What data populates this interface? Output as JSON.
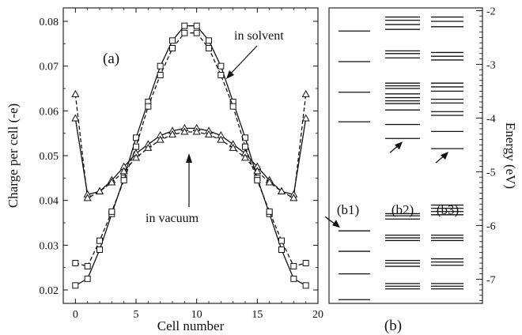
{
  "chart_data": [
    {
      "panel": "(a)",
      "type": "line",
      "xlabel": "Cell number",
      "ylabel": "Charge per cell (-e)",
      "xlim": [
        -1,
        20
      ],
      "ylim": [
        0.017,
        0.083
      ],
      "x_ticks": [
        "0",
        "5",
        "10",
        "15",
        "20"
      ],
      "y_ticks": [
        "0.02",
        "0.03",
        "0.04",
        "0.05",
        "0.06",
        "0.07",
        "0.08"
      ],
      "annotations": [
        "in solvent",
        "in vacuum"
      ],
      "x": [
        0,
        1,
        2,
        3,
        4,
        5,
        6,
        7,
        8,
        9,
        10,
        11,
        12,
        13,
        14,
        15,
        16,
        17,
        18,
        19
      ],
      "series": [
        {
          "group": "in solvent",
          "marker": "square",
          "style": "solid",
          "values": [
            0.021,
            0.0225,
            0.029,
            0.037,
            0.045,
            0.054,
            0.062,
            0.07,
            0.0757,
            0.079,
            0.079,
            0.0757,
            0.07,
            0.062,
            0.054,
            0.045,
            0.037,
            0.029,
            0.0225,
            0.021
          ]
        },
        {
          "group": "in solvent",
          "marker": "square",
          "style": "dashed",
          "values": [
            0.026,
            0.0253,
            0.031,
            0.0375,
            0.0445,
            0.052,
            0.061,
            0.068,
            0.074,
            0.0774,
            0.0774,
            0.074,
            0.068,
            0.061,
            0.052,
            0.0445,
            0.0375,
            0.031,
            0.0253,
            0.026
          ]
        },
        {
          "group": "in vacuum",
          "marker": "triangle",
          "style": "solid",
          "values": [
            0.0583,
            0.0413,
            0.042,
            0.0445,
            0.0475,
            0.0505,
            0.0525,
            0.0545,
            0.0555,
            0.0561,
            0.0561,
            0.0555,
            0.0545,
            0.0525,
            0.0505,
            0.0475,
            0.0445,
            0.042,
            0.0413,
            0.0583
          ]
        },
        {
          "group": "in vacuum",
          "marker": "triangle",
          "style": "dashed",
          "values": [
            0.0637,
            0.0405,
            0.042,
            0.044,
            0.0465,
            0.0495,
            0.0517,
            0.0535,
            0.0547,
            0.0553,
            0.0553,
            0.0547,
            0.0535,
            0.0517,
            0.0495,
            0.0465,
            0.044,
            0.042,
            0.0405,
            0.0637
          ]
        }
      ]
    },
    {
      "panel": "(b)",
      "type": "energy-level diagram",
      "ylabel": "Energy (eV)",
      "ylim": [
        -7.45,
        -1.95
      ],
      "y_ticks": [
        "-2",
        "-3",
        "-4",
        "-5",
        "-6",
        "-7"
      ],
      "columns": [
        {
          "label": "(b1)",
          "arrow_level": -6.1,
          "levels": [
            -2.38,
            -2.95,
            -3.52,
            -4.07,
            -6.1,
            -6.48,
            -6.9,
            -7.38
          ]
        },
        {
          "label": "(b2)",
          "arrow_level": -4.38,
          "levels": [
            -2.12,
            -2.18,
            -2.26,
            -2.35,
            -2.75,
            -2.8,
            -2.88,
            -3.35,
            -3.4,
            -3.45,
            -3.55,
            -3.62,
            -3.68,
            -3.73,
            -3.85,
            -4.12,
            -4.38,
            -5.78,
            -5.82,
            -5.88,
            -6.18,
            -6.23,
            -6.28,
            -6.65,
            -6.7,
            -6.76,
            -7.08,
            -7.13,
            -7.18
          ]
        },
        {
          "label": "(b3)",
          "arrow_level": -4.57,
          "levels": [
            -2.12,
            -2.2,
            -2.3,
            -2.78,
            -2.85,
            -2.92,
            -3.35,
            -3.42,
            -3.5,
            -3.65,
            -3.72,
            -3.88,
            -3.95,
            -4.25,
            -4.57,
            -5.62,
            -5.68,
            -5.74,
            -5.8,
            -6.18,
            -6.23,
            -6.28,
            -6.62,
            -6.68,
            -6.74,
            -7.08,
            -7.13,
            -7.18
          ]
        }
      ]
    }
  ]
}
